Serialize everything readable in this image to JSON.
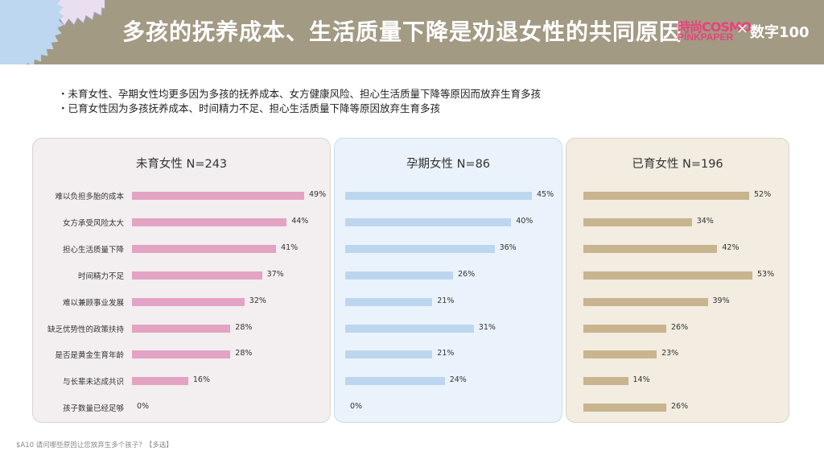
{
  "header": {
    "title": "多孩的抚养成本、生活质量下降是劝退女性的共同原因",
    "brand_cn": "時尚COSMO",
    "brand_pink": "PINKPAPER",
    "brand_x": "×",
    "brand_shuzi": "数字100",
    "colors": {
      "header_bg": "#a39a84",
      "brand_pink": "#e8417c"
    }
  },
  "bullets": [
    "・未育女性、孕期女性均更多因为多孩的抚养成本、女方健康风险、担心生活质量下降等原因而放弃生育多孩",
    "・已育女性因为多孩抚养成本、时间精力不足、担心生活质量下降等原因放弃生育多孩"
  ],
  "footnote": "$A10 请问哪些原因让您放弃生多个孩子？【多选】",
  "chart_data": {
    "type": "bar",
    "orientation": "horizontal",
    "categories": [
      "难以负担多胎的成本",
      "女方承受风险太大",
      "担心生活质量下降",
      "时间精力不足",
      "难以兼顾事业发展",
      "缺乏优势性的政策扶持",
      "是否是黄金生育年龄",
      "与长辈未达成共识",
      "孩子数量已经足够"
    ],
    "series": [
      {
        "name": "未育女性 N=243",
        "values": [
          49,
          44,
          41,
          37,
          32,
          28,
          28,
          16,
          0
        ],
        "labels": [
          "49%",
          "44%",
          "41%",
          "37%",
          "32%",
          "28%",
          "28%",
          "16%",
          "0%"
        ],
        "color": "#e3a3c3"
      },
      {
        "name": "孕期女性 N=86",
        "values": [
          45,
          40,
          36,
          26,
          21,
          31,
          21,
          24,
          0
        ],
        "labels": [
          "45%",
          "40%",
          "36%",
          "26%",
          "21%",
          "31%",
          "21%",
          "24%",
          "0%"
        ],
        "color": "#bdd6ef"
      },
      {
        "name": "已育女性 N=196",
        "values": [
          52,
          34,
          42,
          53,
          39,
          26,
          23,
          14,
          26
        ],
        "labels": [
          "52%",
          "34%",
          "42%",
          "53%",
          "39%",
          "26%",
          "23%",
          "14%",
          "26%"
        ],
        "color": "#c8b48e"
      }
    ],
    "xlim": [
      0,
      60
    ],
    "grid": false,
    "legend": "none"
  }
}
